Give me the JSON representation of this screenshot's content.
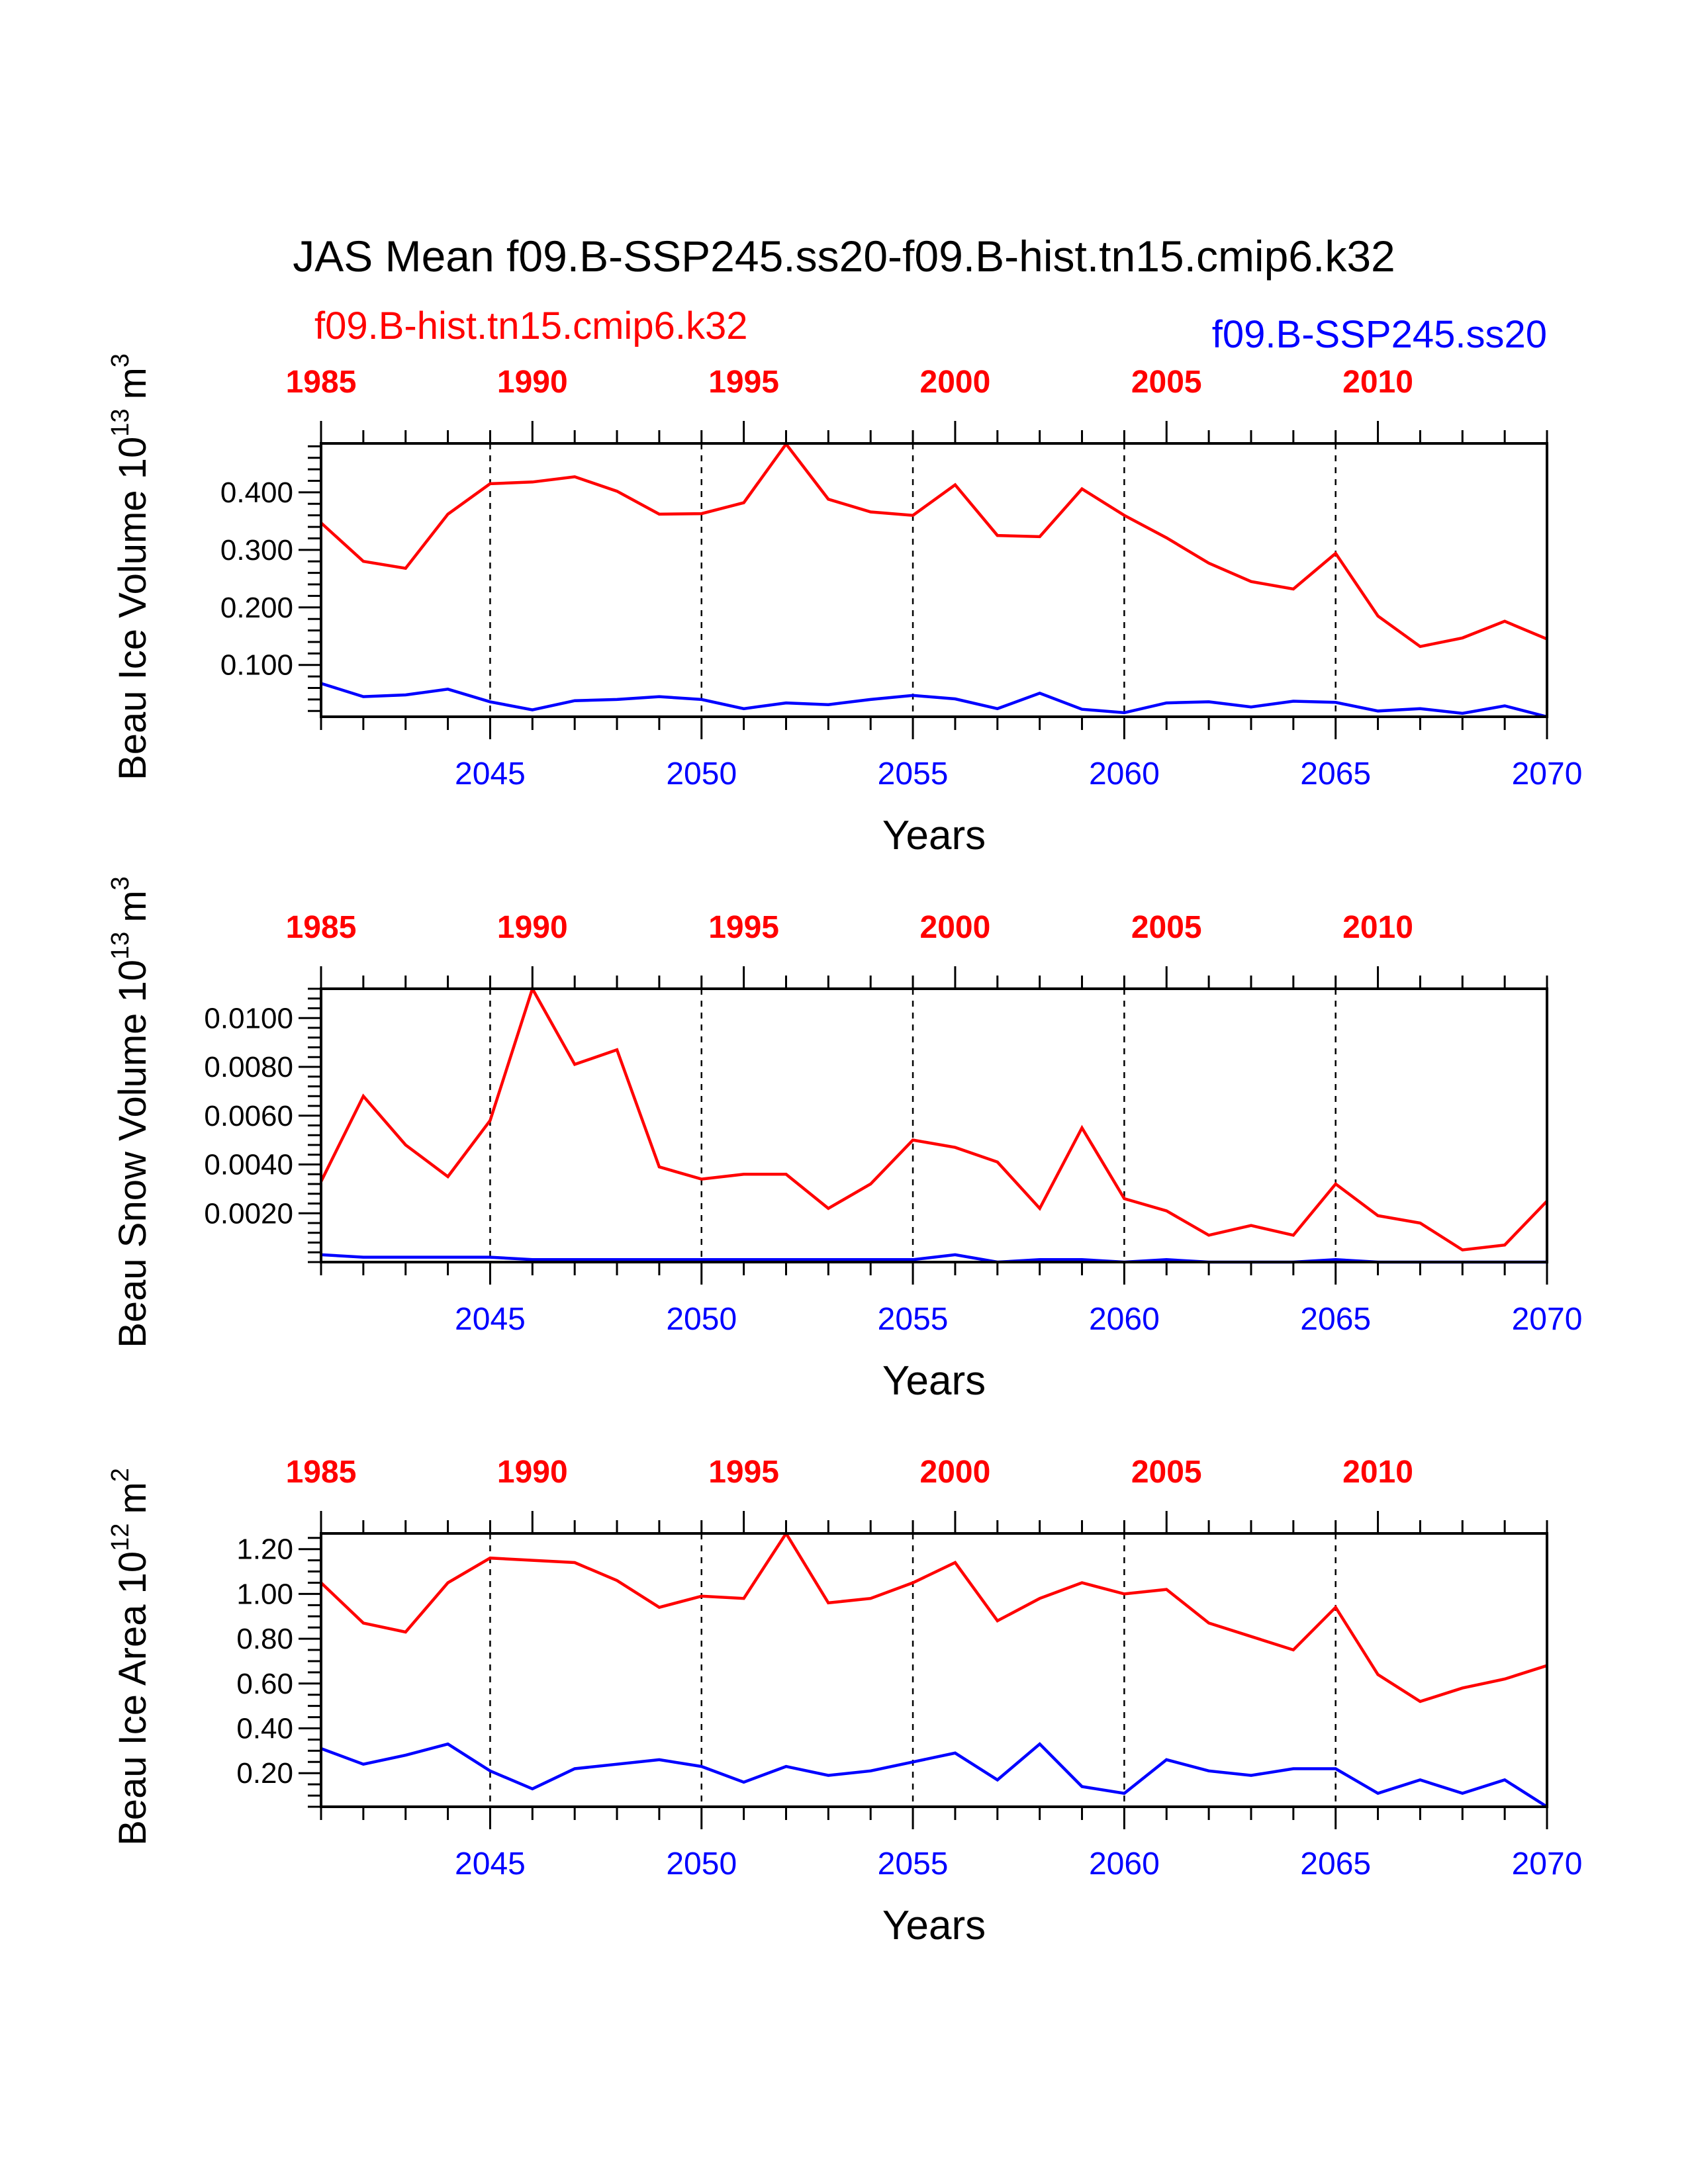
{
  "figure": {
    "title": "JAS Mean f09.B-SSP245.ss20-f09.B-hist.tn15.cmip6.k32",
    "legend_left": "f09.B-hist.tn15.cmip6.k32",
    "legend_right": "f09.B-SSP245.ss20",
    "colors": {
      "hist": "#ff0000",
      "ssp": "#0000ff",
      "axis": "#000000"
    }
  },
  "chart_data": [
    {
      "type": "line",
      "ylabel": "Beau Ice Volume 10",
      "ylabel_exp": "13",
      "ylabel_unit": "m",
      "ylabel_unit_exp": "3",
      "xlabel": "Years",
      "xlim": [
        2041,
        2070
      ],
      "ylim": [
        0.01,
        0.485
      ],
      "yticks": [
        0.1,
        0.2,
        0.3,
        0.4
      ],
      "ytick_labels": [
        "0.100",
        "0.200",
        "0.300",
        "0.400"
      ],
      "y_minor_step": 0.02,
      "xticks_bottom": [
        2045,
        2050,
        2055,
        2060,
        2065,
        2070
      ],
      "xtick_labels_bottom": [
        "2045",
        "2050",
        "2055",
        "2060",
        "2065",
        "2070"
      ],
      "xticks_top": [
        2041,
        2046,
        2051,
        2056,
        2061,
        2066
      ],
      "xtick_labels_top": [
        "1985",
        "1990",
        "1995",
        "2000",
        "2005",
        "2010"
      ],
      "gridlines_x": [
        2045,
        2050,
        2055,
        2060,
        2065
      ],
      "x": [
        2041,
        2042,
        2043,
        2044,
        2045,
        2046,
        2047,
        2048,
        2049,
        2050,
        2051,
        2052,
        2053,
        2054,
        2055,
        2056,
        2057,
        2058,
        2059,
        2060,
        2061,
        2062,
        2063,
        2064,
        2065,
        2066,
        2067,
        2068,
        2069,
        2070
      ],
      "series": [
        {
          "name": "f09.B-hist.tn15.cmip6.k32",
          "color": "#ff0000",
          "values": [
            0.347,
            0.28,
            0.268,
            0.362,
            0.415,
            0.418,
            0.427,
            0.402,
            0.362,
            0.363,
            0.382,
            0.484,
            0.388,
            0.366,
            0.36,
            0.413,
            0.325,
            0.323,
            0.406,
            0.36,
            0.321,
            0.277,
            0.245,
            0.232,
            0.294,
            0.185,
            0.132,
            0.147,
            0.176,
            0.145
          ]
        },
        {
          "name": "f09.B-SSP245.ss20",
          "color": "#0000ff",
          "values": [
            0.068,
            0.045,
            0.048,
            0.058,
            0.036,
            0.022,
            0.038,
            0.04,
            0.045,
            0.04,
            0.024,
            0.034,
            0.031,
            0.04,
            0.047,
            0.041,
            0.024,
            0.051,
            0.023,
            0.017,
            0.034,
            0.036,
            0.027,
            0.037,
            0.035,
            0.02,
            0.024,
            0.016,
            0.029,
            0.01
          ]
        }
      ]
    },
    {
      "type": "line",
      "ylabel": "Beau Snow Volume 10",
      "ylabel_exp": "13",
      "ylabel_unit": "m",
      "ylabel_unit_exp": "3",
      "xlabel": "Years",
      "xlim": [
        2041,
        2070
      ],
      "ylim": [
        0.0,
        0.0112
      ],
      "yticks": [
        0.002,
        0.004,
        0.006,
        0.008,
        0.01
      ],
      "ytick_labels": [
        "0.0020",
        "0.0040",
        "0.0060",
        "0.0080",
        "0.0100"
      ],
      "y_minor_step": 0.0004,
      "xticks_bottom": [
        2045,
        2050,
        2055,
        2060,
        2065,
        2070
      ],
      "xtick_labels_bottom": [
        "2045",
        "2050",
        "2055",
        "2060",
        "2065",
        "2070"
      ],
      "xticks_top": [
        2041,
        2046,
        2051,
        2056,
        2061,
        2066
      ],
      "xtick_labels_top": [
        "1985",
        "1990",
        "1995",
        "2000",
        "2005",
        "2010"
      ],
      "gridlines_x": [
        2045,
        2050,
        2055,
        2060,
        2065
      ],
      "x": [
        2041,
        2042,
        2043,
        2044,
        2045,
        2046,
        2047,
        2048,
        2049,
        2050,
        2051,
        2052,
        2053,
        2054,
        2055,
        2056,
        2057,
        2058,
        2059,
        2060,
        2061,
        2062,
        2063,
        2064,
        2065,
        2066,
        2067,
        2068,
        2069,
        2070
      ],
      "series": [
        {
          "name": "f09.B-hist.tn15.cmip6.k32",
          "color": "#ff0000",
          "values": [
            0.0033,
            0.0068,
            0.0048,
            0.0035,
            0.0058,
            0.0112,
            0.0081,
            0.0087,
            0.0039,
            0.0034,
            0.0036,
            0.0036,
            0.0022,
            0.0032,
            0.005,
            0.0047,
            0.0041,
            0.0022,
            0.0055,
            0.0026,
            0.0021,
            0.0011,
            0.0015,
            0.0011,
            0.0032,
            0.0019,
            0.0016,
            0.0005,
            0.0007,
            0.0025
          ]
        },
        {
          "name": "f09.B-SSP245.ss20",
          "color": "#0000ff",
          "values": [
            0.0003,
            0.0002,
            0.0002,
            0.0002,
            0.0002,
            0.0001,
            0.0001,
            0.0001,
            0.0001,
            0.0001,
            0.0001,
            0.0001,
            0.0001,
            0.0001,
            0.0001,
            0.0003,
            0.0,
            0.0001,
            0.0001,
            0.0,
            0.0001,
            0.0,
            0.0,
            0.0,
            0.0001,
            0.0,
            0.0,
            0.0,
            0.0,
            0.0
          ]
        }
      ]
    },
    {
      "type": "line",
      "ylabel": "Beau Ice Area 10",
      "ylabel_exp": "12",
      "ylabel_unit": "m",
      "ylabel_unit_exp": "2",
      "xlabel": "Years",
      "xlim": [
        2041,
        2070
      ],
      "ylim": [
        0.05,
        1.27
      ],
      "yticks": [
        0.2,
        0.4,
        0.6,
        0.8,
        1.0,
        1.2
      ],
      "ytick_labels": [
        "0.20",
        "0.40",
        "0.60",
        "0.80",
        "1.00",
        "1.20"
      ],
      "y_minor_step": 0.05,
      "xticks_bottom": [
        2045,
        2050,
        2055,
        2060,
        2065,
        2070
      ],
      "xtick_labels_bottom": [
        "2045",
        "2050",
        "2055",
        "2060",
        "2065",
        "2070"
      ],
      "xticks_top": [
        2041,
        2046,
        2051,
        2056,
        2061,
        2066
      ],
      "xtick_labels_top": [
        "1985",
        "1990",
        "1995",
        "2000",
        "2005",
        "2010"
      ],
      "gridlines_x": [
        2045,
        2050,
        2055,
        2060,
        2065
      ],
      "x": [
        2041,
        2042,
        2043,
        2044,
        2045,
        2046,
        2047,
        2048,
        2049,
        2050,
        2051,
        2052,
        2053,
        2054,
        2055,
        2056,
        2057,
        2058,
        2059,
        2060,
        2061,
        2062,
        2063,
        2064,
        2065,
        2066,
        2067,
        2068,
        2069,
        2070
      ],
      "series": [
        {
          "name": "f09.B-hist.tn15.cmip6.k32",
          "color": "#ff0000",
          "values": [
            1.05,
            0.87,
            0.83,
            1.05,
            1.16,
            1.15,
            1.14,
            1.06,
            0.94,
            0.99,
            0.98,
            1.27,
            0.96,
            0.98,
            1.05,
            1.14,
            0.88,
            0.98,
            1.05,
            1.0,
            1.02,
            0.87,
            0.81,
            0.75,
            0.94,
            0.64,
            0.52,
            0.58,
            0.62,
            0.68
          ]
        },
        {
          "name": "f09.B-SSP245.ss20",
          "color": "#0000ff",
          "values": [
            0.31,
            0.24,
            0.28,
            0.33,
            0.21,
            0.13,
            0.22,
            0.24,
            0.26,
            0.23,
            0.16,
            0.23,
            0.19,
            0.21,
            0.25,
            0.29,
            0.17,
            0.33,
            0.14,
            0.11,
            0.26,
            0.21,
            0.19,
            0.22,
            0.22,
            0.11,
            0.17,
            0.11,
            0.17,
            0.05
          ]
        }
      ]
    }
  ]
}
